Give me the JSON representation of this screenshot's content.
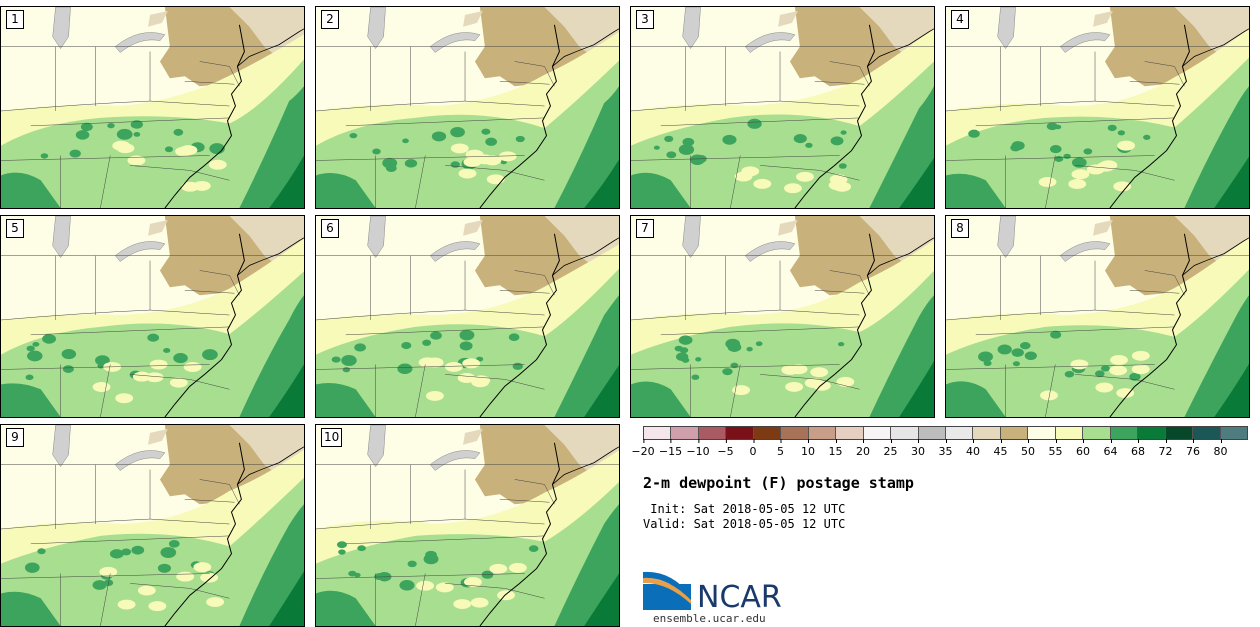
{
  "panels": [
    {
      "label": "1"
    },
    {
      "label": "2"
    },
    {
      "label": "3"
    },
    {
      "label": "4"
    },
    {
      "label": "5"
    },
    {
      "label": "6"
    },
    {
      "label": "7"
    },
    {
      "label": "8"
    },
    {
      "label": "9"
    },
    {
      "label": "10"
    }
  ],
  "colorbar": {
    "colors": [
      "#f4e6ea",
      "#cfa0ac",
      "#a95a63",
      "#7a1018",
      "#7e3a12",
      "#a77258",
      "#c99e88",
      "#e4cfc0",
      "#f6f4f4",
      "#e6e6e6",
      "#bdbdbd",
      "#e9e9e9",
      "#e4d9bc",
      "#c8b17b",
      "#fefde6",
      "#f7fab8",
      "#a8de8f",
      "#3ca45c",
      "#0a7a38",
      "#08482a",
      "#1a5756",
      "#4f7d7f"
    ],
    "ticks": [
      "−20",
      "−15",
      "−10",
      "−5",
      "0",
      "5",
      "10",
      "15",
      "20",
      "25",
      "30",
      "35",
      "40",
      "45",
      "50",
      "55",
      "60",
      "64",
      "68",
      "72",
      "76",
      "80"
    ]
  },
  "title": "2-m dewpoint (F) postage stamp",
  "init": " Init: Sat 2018-05-05 12 UTC",
  "valid": "Valid: Sat 2018-05-05 12 UTC",
  "logo": {
    "text": "NCAR",
    "site": "ensemble.ucar.edu",
    "color": "#1a3a6c",
    "accent": "#0a6fb8"
  }
}
